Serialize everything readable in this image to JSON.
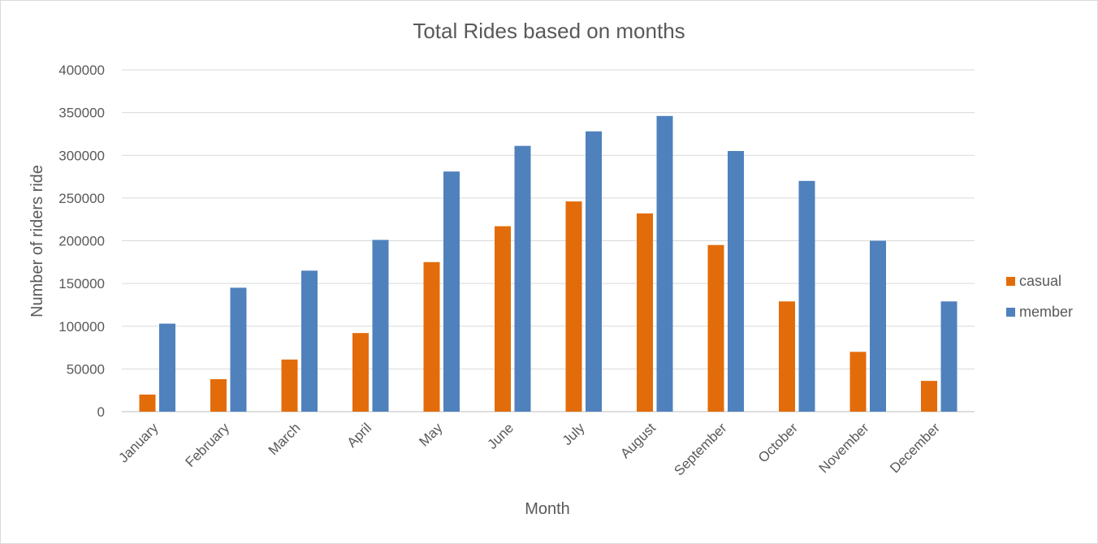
{
  "chart_data": {
    "type": "bar",
    "title": "Total Rides based on months",
    "xlabel": "Month",
    "ylabel": "Number of riders ride",
    "categories": [
      "January",
      "February",
      "March",
      "April",
      "May",
      "June",
      "July",
      "August",
      "September",
      "October",
      "November",
      "December"
    ],
    "series": [
      {
        "name": "casual",
        "color": "#E36C0A",
        "values": [
          20000,
          38000,
          61000,
          92000,
          175000,
          217000,
          246000,
          232000,
          195000,
          129000,
          70000,
          36000
        ]
      },
      {
        "name": "member",
        "color": "#4F81BD",
        "values": [
          103000,
          145000,
          165000,
          201000,
          281000,
          311000,
          328000,
          346000,
          305000,
          270000,
          200000,
          129000
        ]
      }
    ],
    "ylim": [
      0,
      400000
    ],
    "yticks": [
      0,
      50000,
      100000,
      150000,
      200000,
      250000,
      300000,
      350000,
      400000
    ],
    "grid": true,
    "legend_position": "right"
  }
}
